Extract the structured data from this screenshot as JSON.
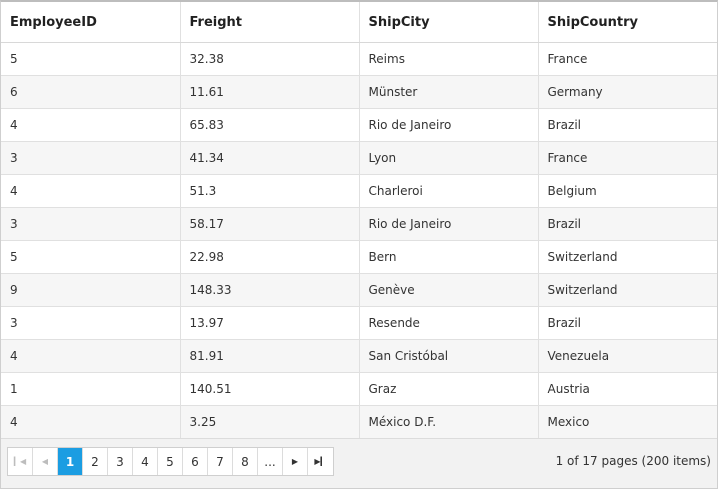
{
  "columns": [
    "EmployeeID",
    "Freight",
    "ShipCity",
    "ShipCountry"
  ],
  "rows": [
    [
      "5",
      "32.38",
      "Reims",
      "France"
    ],
    [
      "6",
      "11.61",
      "Münster",
      "Germany"
    ],
    [
      "4",
      "65.83",
      "Rio de Janeiro",
      "Brazil"
    ],
    [
      "3",
      "41.34",
      "Lyon",
      "France"
    ],
    [
      "4",
      "51.3",
      "Charleroi",
      "Belgium"
    ],
    [
      "3",
      "58.17",
      "Rio de Janeiro",
      "Brazil"
    ],
    [
      "5",
      "22.98",
      "Bern",
      "Switzerland"
    ],
    [
      "9",
      "148.33",
      "Genève",
      "Switzerland"
    ],
    [
      "3",
      "13.97",
      "Resende",
      "Brazil"
    ],
    [
      "4",
      "81.91",
      "San Cristóbal",
      "Venezuela"
    ],
    [
      "1",
      "140.51",
      "Graz",
      "Austria"
    ],
    [
      "4",
      "3.25",
      "México D.F.",
      "Mexico"
    ]
  ],
  "pager": {
    "icons": {
      "first": "first-page-icon",
      "prev": "previous-page-icon",
      "next": "next-page-icon",
      "last": "last-page-icon"
    },
    "pages": [
      "1",
      "2",
      "3",
      "4",
      "5",
      "6",
      "7",
      "8"
    ],
    "ellipsis": "...",
    "current_page": "1",
    "info": "1 of 17 pages (200 items)"
  },
  "colors": {
    "active_page": "#1b9de2",
    "alt_row": "#f6f6f6",
    "pager_bg": "#f2f2f2"
  }
}
